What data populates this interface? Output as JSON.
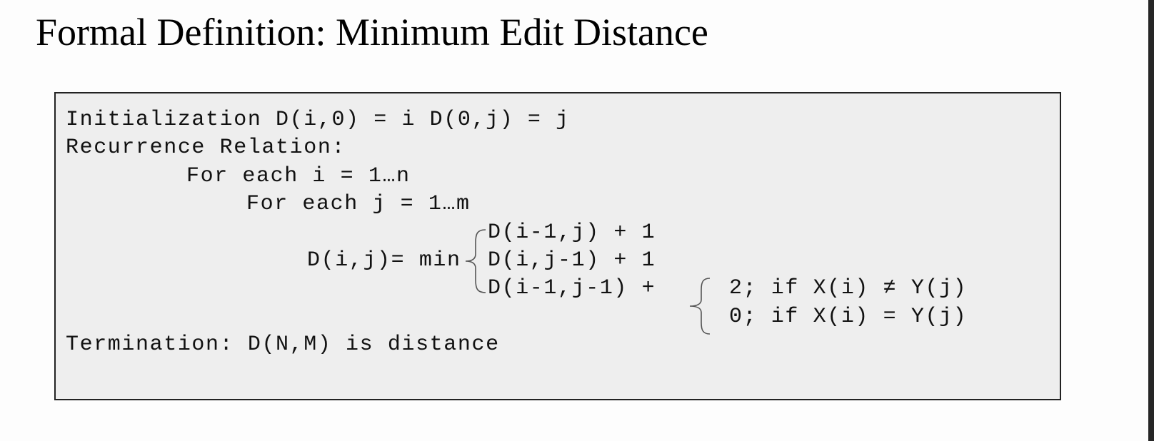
{
  "title": "Formal Definition: Minimum Edit Distance",
  "definition": {
    "initialization": "Initialization D(i,0) = i D(0,j) = j",
    "recurrence_label": "Recurrence Relation:",
    "loop_i": "For each i = 1…n",
    "loop_j": "For each j = 1…m",
    "lhs": "D(i,j)= min",
    "cases": [
      "D(i-1,j) + 1",
      "D(i,j-1) + 1",
      "D(i-1,j-1) +"
    ],
    "sub_cases": [
      "2; if X(i) ≠ Y(j)",
      "0; if X(i) = Y(j)"
    ],
    "termination": "Termination: D(N,M) is distance"
  }
}
